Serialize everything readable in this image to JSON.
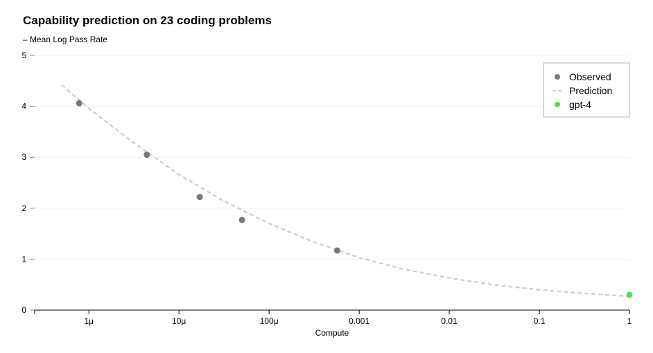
{
  "chart_data": {
    "type": "scatter",
    "title": "Capability prediction on 23 coding problems",
    "ylabel": "– Mean Log Pass Rate",
    "xlabel": "Compute",
    "xscale": "log",
    "xlim": [
      2.5e-07,
      1
    ],
    "ylim": [
      0,
      5
    ],
    "yticks": [
      "0",
      "1",
      "2",
      "3",
      "4",
      "5"
    ],
    "xticks": [
      {
        "value": 1e-06,
        "label": "1μ"
      },
      {
        "value": 1e-05,
        "label": "10μ"
      },
      {
        "value": 0.0001,
        "label": "100μ"
      },
      {
        "value": 0.001,
        "label": "0.001"
      },
      {
        "value": 0.01,
        "label": "0.01"
      },
      {
        "value": 0.1,
        "label": "0.1"
      },
      {
        "value": 1,
        "label": "1"
      }
    ],
    "grid": "horizontal",
    "legend_position": "top-right",
    "series": [
      {
        "name": "Observed",
        "kind": "points",
        "color": "#777777",
        "x": [
          7.8e-07,
          4.4e-06,
          1.7e-05,
          5e-05,
          0.00057
        ],
        "y": [
          4.06,
          3.05,
          2.22,
          1.77,
          1.17
        ]
      },
      {
        "name": "Prediction",
        "kind": "dashed-line",
        "color": "#cccccc",
        "x": [
          5e-07,
          1e-06,
          3e-06,
          1e-05,
          3e-05,
          0.0001,
          0.0003,
          0.001,
          0.003,
          0.01,
          0.03,
          0.1,
          0.3,
          1
        ],
        "y": [
          4.42,
          3.96,
          3.31,
          2.66,
          2.16,
          1.7,
          1.35,
          1.03,
          0.81,
          0.63,
          0.5,
          0.4,
          0.33,
          0.27
        ]
      },
      {
        "name": "gpt-4",
        "kind": "points",
        "color": "#55dd55",
        "x": [
          1
        ],
        "y": [
          0.3
        ]
      }
    ]
  }
}
